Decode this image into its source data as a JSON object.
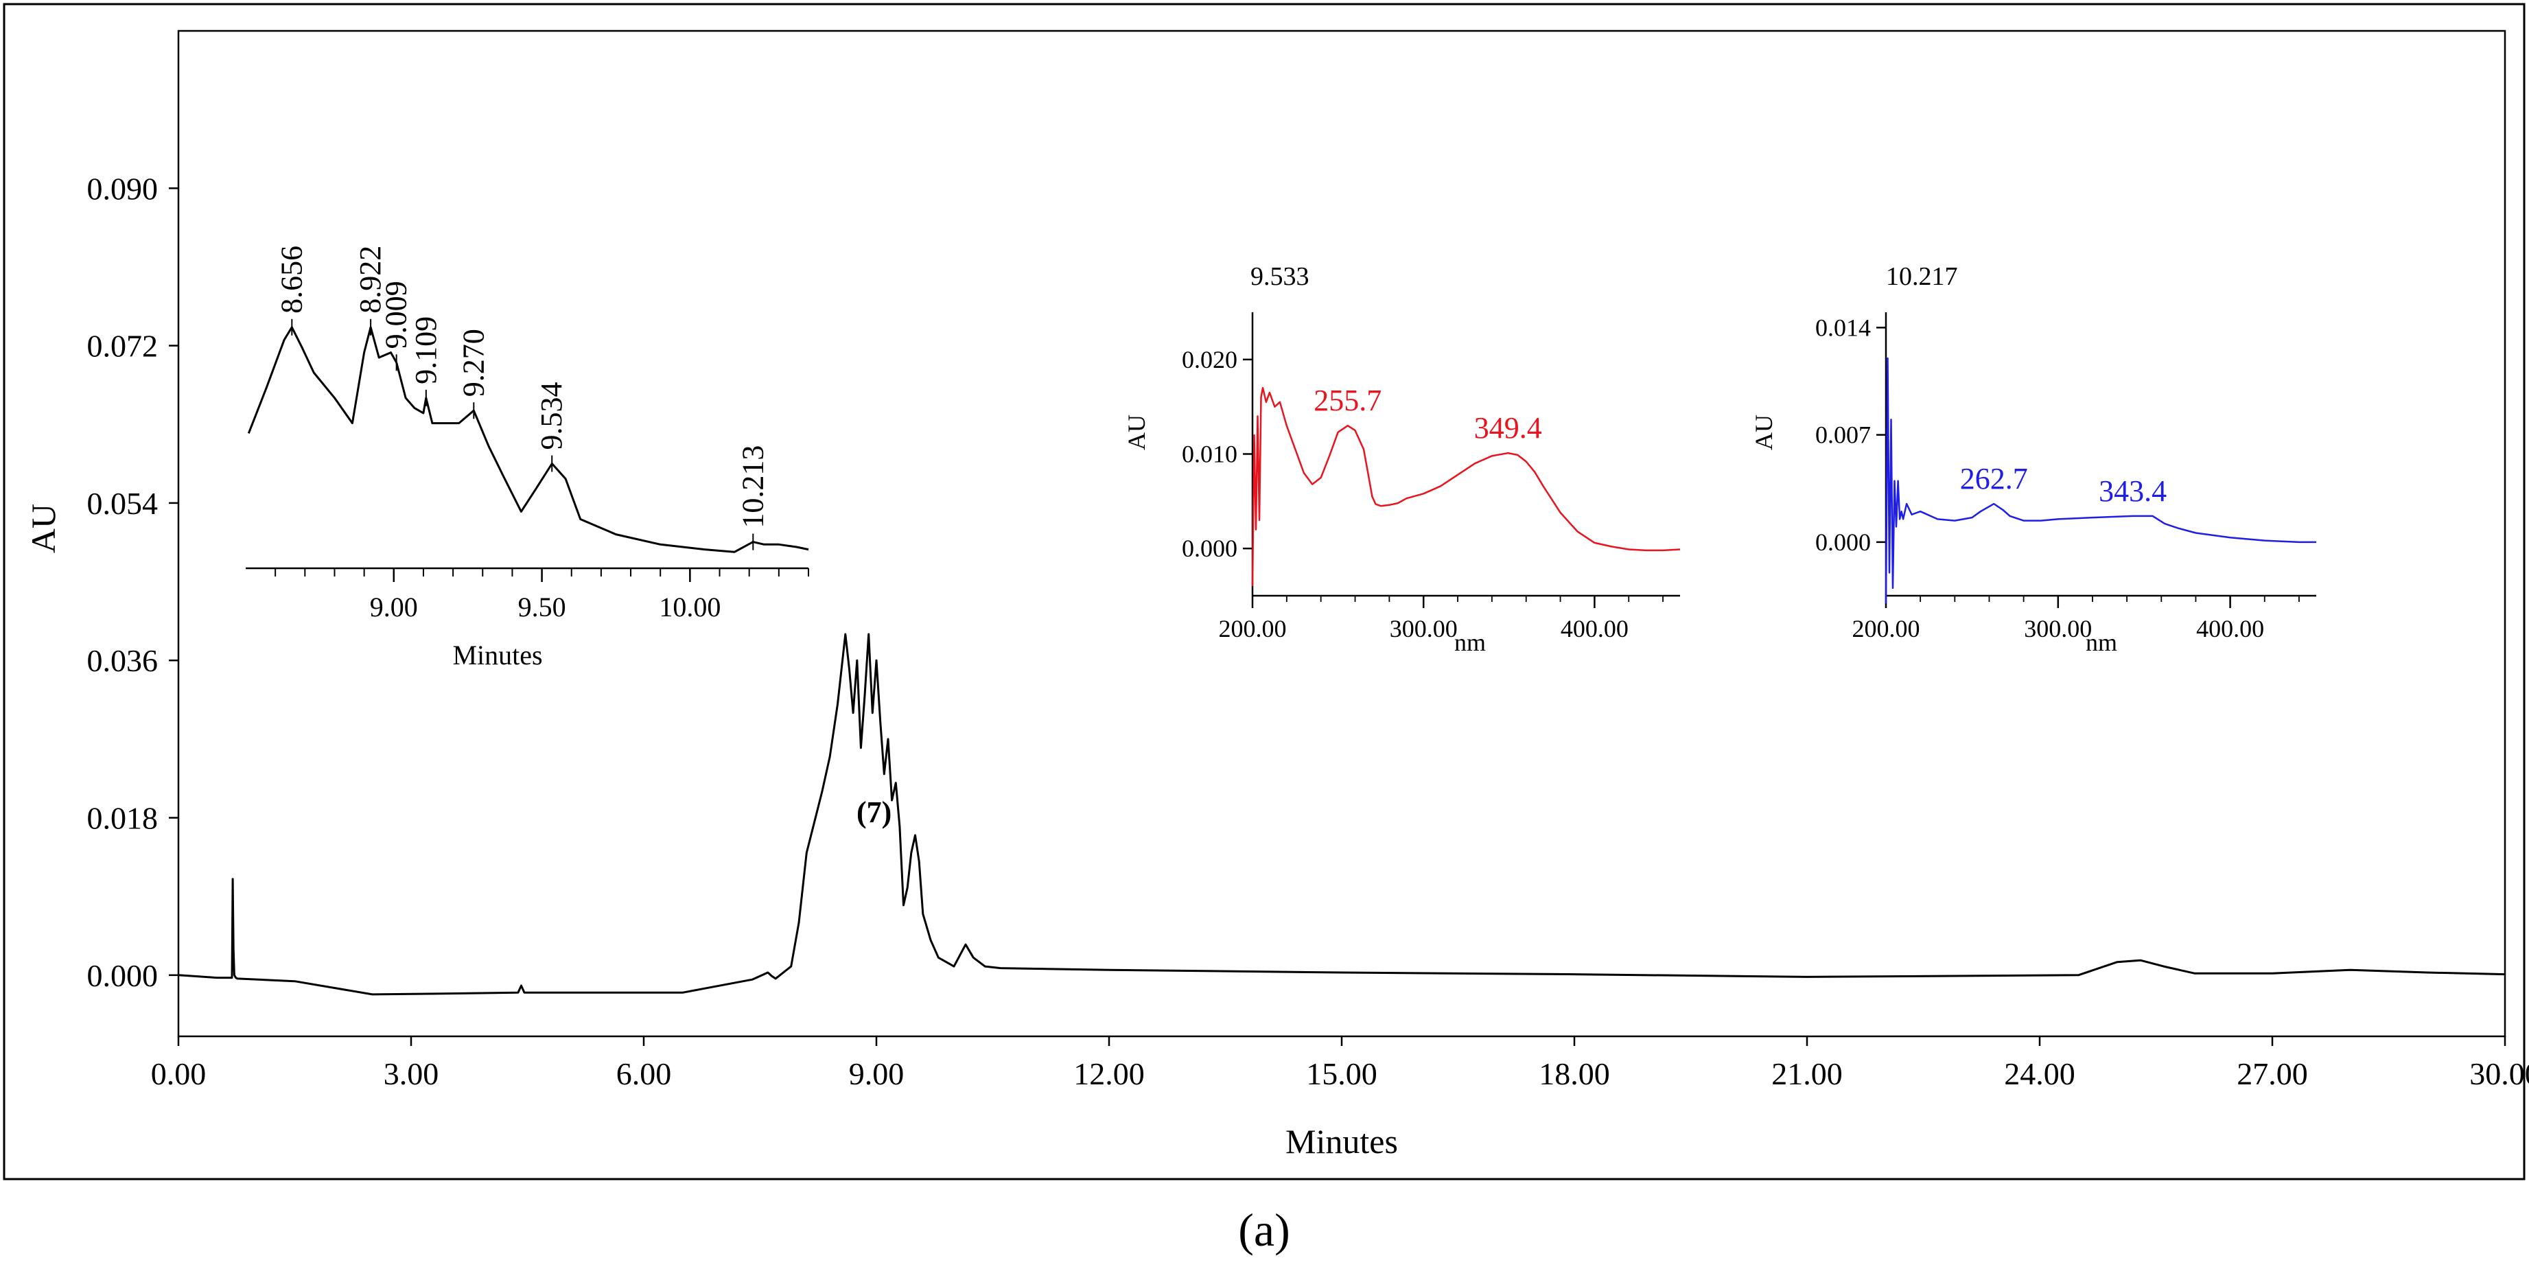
{
  "caption": "(a)",
  "chart_data": [
    {
      "id": "main",
      "type": "line",
      "xlabel": "Minutes",
      "ylabel": "AU",
      "xlim": [
        0,
        30
      ],
      "ylim": [
        -0.007,
        0.108
      ],
      "xticks": [
        0,
        3,
        6,
        9,
        12,
        15,
        18,
        21,
        24,
        27,
        30
      ],
      "xtick_labels": [
        "0.00",
        "3.00",
        "6.00",
        "9.00",
        "12.00",
        "15.00",
        "18.00",
        "21.00",
        "24.00",
        "27.00",
        "30.00"
      ],
      "yticks": [
        0,
        0.018,
        0.036,
        0.054,
        0.072,
        0.09
      ],
      "ytick_labels": [
        "0.000",
        "0.018",
        "0.036",
        "0.054",
        "0.072",
        "0.090"
      ],
      "annotations": [
        {
          "label": "(7)",
          "x": 9.55,
          "y": 0.018
        }
      ],
      "series": [
        {
          "color": "#000000",
          "x": [
            0,
            0.5,
            0.69,
            0.7,
            0.71,
            0.72,
            0.74,
            0.76,
            1.5,
            2.5,
            3.5,
            4.38,
            4.42,
            4.46,
            5,
            6.5,
            7.4,
            7.6,
            7.65,
            7.7,
            7.9,
            8.0,
            8.1,
            8.3,
            8.4,
            8.5,
            8.6,
            8.65,
            8.7,
            8.75,
            8.8,
            8.85,
            8.9,
            8.95,
            9.0,
            9.05,
            9.1,
            9.15,
            9.2,
            9.25,
            9.3,
            9.35,
            9.4,
            9.45,
            9.5,
            9.55,
            9.6,
            9.7,
            9.8,
            10.0,
            10.15,
            10.25,
            10.4,
            10.6,
            12,
            15,
            18,
            21,
            24.5,
            25.0,
            25.3,
            25.6,
            26,
            27,
            28,
            29,
            30
          ],
          "y": [
            0,
            -0.0003,
            -0.0003,
            0.011,
            0.003,
            0,
            -0.0003,
            -0.0004,
            -0.0007,
            -0.0022,
            -0.0021,
            -0.002,
            -0.0012,
            -0.002,
            -0.002,
            -0.002,
            -0.0005,
            0.0003,
            -0.0001,
            -0.0004,
            0.001,
            0.006,
            0.014,
            0.021,
            0.025,
            0.031,
            0.039,
            0.035,
            0.03,
            0.036,
            0.026,
            0.032,
            0.039,
            0.03,
            0.036,
            0.029,
            0.023,
            0.027,
            0.02,
            0.022,
            0.017,
            0.008,
            0.01,
            0.014,
            0.016,
            0.013,
            0.007,
            0.004,
            0.002,
            0.001,
            0.0035,
            0.002,
            0.001,
            0.0008,
            0.0006,
            0.0003,
            0.0001,
            -0.0002,
            0,
            0.0015,
            0.0017,
            0.001,
            0.0002,
            0.0002,
            0.0006,
            0.0003,
            0.0001
          ]
        }
      ]
    },
    {
      "id": "zoom",
      "type": "line",
      "xlabel": "Minutes",
      "xlim": [
        8.5,
        10.4
      ],
      "ylim": [
        0,
        1
      ],
      "xticks": [
        9.0,
        9.5,
        10.0
      ],
      "xtick_labels": [
        "9.00",
        "9.50",
        "10.00"
      ],
      "peak_labels": [
        {
          "label": "8.656",
          "x": 8.656
        },
        {
          "label": "8.922",
          "x": 8.922
        },
        {
          "label": "9.009",
          "x": 9.009
        },
        {
          "label": "9.109",
          "x": 9.109
        },
        {
          "label": "9.270",
          "x": 9.27
        },
        {
          "label": "9.534",
          "x": 9.534
        },
        {
          "label": "10.213",
          "x": 10.213
        }
      ],
      "series": [
        {
          "color": "#000000",
          "x": [
            8.51,
            8.57,
            8.63,
            8.656,
            8.69,
            8.73,
            8.8,
            8.86,
            8.9,
            8.922,
            8.95,
            8.99,
            9.009,
            9.04,
            9.07,
            9.1,
            9.109,
            9.13,
            9.17,
            9.22,
            9.27,
            9.32,
            9.37,
            9.43,
            9.48,
            9.534,
            9.58,
            9.63,
            9.75,
            9.9,
            10.05,
            10.15,
            10.213,
            10.25,
            10.3,
            10.36,
            10.4
          ],
          "y": [
            0.48,
            0.66,
            0.85,
            0.9,
            0.82,
            0.72,
            0.62,
            0.52,
            0.8,
            0.9,
            0.78,
            0.8,
            0.76,
            0.62,
            0.58,
            0.56,
            0.62,
            0.52,
            0.52,
            0.52,
            0.57,
            0.43,
            0.31,
            0.17,
            0.26,
            0.36,
            0.3,
            0.14,
            0.08,
            0.04,
            0.02,
            0.01,
            0.05,
            0.04,
            0.04,
            0.03,
            0.02
          ]
        }
      ]
    },
    {
      "id": "spectrum-red",
      "type": "line",
      "title": "9.533",
      "xlabel": "nm",
      "ylabel": "AU",
      "xlim": [
        200,
        450
      ],
      "ylim": [
        -0.005,
        0.025
      ],
      "xticks": [
        200,
        300,
        400
      ],
      "xtick_labels": [
        "200.00",
        "300.00",
        "400.00"
      ],
      "yticks": [
        0,
        0.01,
        0.02
      ],
      "ytick_labels": [
        "0.000",
        "0.010",
        "0.020"
      ],
      "peak_labels": [
        {
          "label": "255.7",
          "x": 255.7
        },
        {
          "label": "349.4",
          "x": 349.4
        }
      ],
      "series": [
        {
          "color": "#e8141e",
          "x": [
            200,
            201,
            202,
            203,
            204,
            205,
            206,
            208,
            210,
            213,
            216,
            220,
            225,
            230,
            235,
            240,
            245,
            250,
            255.7,
            260,
            265,
            268,
            270,
            272,
            275,
            280,
            285,
            290,
            300,
            310,
            320,
            330,
            340,
            349.4,
            355,
            360,
            365,
            370,
            375,
            380,
            390,
            400,
            410,
            420,
            430,
            440,
            450
          ],
          "y": [
            -0.004,
            0.012,
            0.002,
            0.014,
            0.003,
            0.016,
            0.017,
            0.0155,
            0.0165,
            0.015,
            0.0155,
            0.013,
            0.0105,
            0.008,
            0.0068,
            0.0075,
            0.0098,
            0.0123,
            0.013,
            0.0125,
            0.0105,
            0.0075,
            0.0055,
            0.0047,
            0.0045,
            0.0046,
            0.0048,
            0.0053,
            0.0058,
            0.0066,
            0.0078,
            0.009,
            0.0098,
            0.0101,
            0.0099,
            0.0092,
            0.0081,
            0.0066,
            0.0052,
            0.0038,
            0.0018,
            0.0006,
            0.0002,
            -0.0001,
            -0.0002,
            -0.0002,
            -0.0001
          ]
        }
      ]
    },
    {
      "id": "spectrum-blue",
      "type": "line",
      "title": "10.217",
      "xlabel": "nm",
      "ylabel": "AU",
      "xlim": [
        200,
        450
      ],
      "ylim": [
        -0.0035,
        0.015
      ],
      "xticks": [
        200,
        300,
        400
      ],
      "xtick_labels": [
        "200.00",
        "300.00",
        "400.00"
      ],
      "yticks": [
        0,
        0.007,
        0.014
      ],
      "ytick_labels": [
        "0.000",
        "0.007",
        "0.014"
      ],
      "peak_labels": [
        {
          "label": "262.7",
          "x": 262.7
        },
        {
          "label": "343.4",
          "x": 343.4
        }
      ],
      "series": [
        {
          "color": "#1e1ee6",
          "x": [
            200,
            201,
            202,
            203,
            204,
            205,
            206,
            207,
            208,
            209,
            210,
            212,
            215,
            220,
            230,
            240,
            250,
            255,
            262.7,
            268,
            272,
            280,
            290,
            300,
            320,
            343.4,
            355,
            362,
            370,
            380,
            400,
            420,
            440,
            450
          ],
          "y": [
            -0.004,
            0.012,
            -0.002,
            0.008,
            -0.003,
            0.004,
            0.001,
            0.004,
            0.0015,
            0.002,
            0.0015,
            0.0025,
            0.0018,
            0.002,
            0.0015,
            0.0014,
            0.0016,
            0.002,
            0.0025,
            0.0021,
            0.0017,
            0.0014,
            0.0014,
            0.0015,
            0.0016,
            0.0017,
            0.0017,
            0.0012,
            0.0009,
            0.0006,
            0.0003,
            0.0001,
            0.0,
            0.0
          ]
        }
      ]
    }
  ]
}
